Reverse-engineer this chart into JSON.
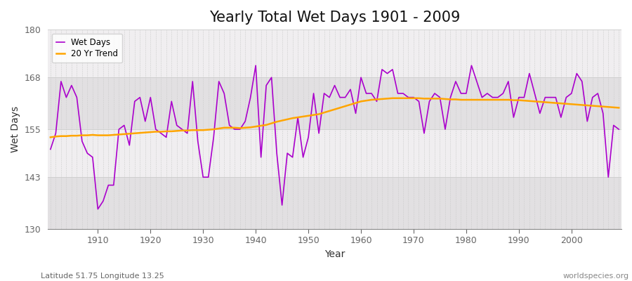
{
  "title": "Yearly Total Wet Days 1901 - 2009",
  "xlabel": "Year",
  "ylabel": "Wet Days",
  "footnote_left": "Latitude 51.75 Longitude 13.25",
  "footnote_right": "worldspecies.org",
  "ylim": [
    130,
    180
  ],
  "yticks": [
    130,
    143,
    155,
    168,
    180
  ],
  "xticks": [
    1910,
    1920,
    1930,
    1940,
    1950,
    1960,
    1970,
    1980,
    1990,
    2000
  ],
  "years": [
    1901,
    1902,
    1903,
    1904,
    1905,
    1906,
    1907,
    1908,
    1909,
    1910,
    1911,
    1912,
    1913,
    1914,
    1915,
    1916,
    1917,
    1918,
    1919,
    1920,
    1921,
    1922,
    1923,
    1924,
    1925,
    1926,
    1927,
    1928,
    1929,
    1930,
    1931,
    1932,
    1933,
    1934,
    1935,
    1936,
    1937,
    1938,
    1939,
    1940,
    1941,
    1942,
    1943,
    1944,
    1945,
    1946,
    1947,
    1948,
    1949,
    1950,
    1951,
    1952,
    1953,
    1954,
    1955,
    1956,
    1957,
    1958,
    1959,
    1960,
    1961,
    1962,
    1963,
    1964,
    1965,
    1966,
    1967,
    1968,
    1969,
    1970,
    1971,
    1972,
    1973,
    1974,
    1975,
    1976,
    1977,
    1978,
    1979,
    1980,
    1981,
    1982,
    1983,
    1984,
    1985,
    1986,
    1987,
    1988,
    1989,
    1990,
    1991,
    1992,
    1993,
    1994,
    1995,
    1996,
    1997,
    1998,
    1999,
    2000,
    2001,
    2002,
    2003,
    2004,
    2005,
    2006,
    2007,
    2008,
    2009
  ],
  "wet_days": [
    150,
    154,
    167,
    163,
    166,
    163,
    152,
    149,
    148,
    135,
    137,
    141,
    141,
    155,
    156,
    151,
    162,
    163,
    157,
    163,
    155,
    154,
    153,
    162,
    156,
    155,
    154,
    167,
    152,
    143,
    143,
    153,
    167,
    164,
    156,
    155,
    155,
    157,
    163,
    171,
    148,
    166,
    168,
    149,
    136,
    149,
    148,
    158,
    148,
    153,
    164,
    154,
    164,
    163,
    166,
    163,
    163,
    165,
    159,
    168,
    164,
    164,
    162,
    170,
    169,
    170,
    164,
    164,
    163,
    163,
    162,
    154,
    162,
    164,
    163,
    155,
    163,
    167,
    164,
    164,
    171,
    167,
    163,
    164,
    163,
    163,
    164,
    167,
    158,
    163,
    163,
    169,
    164,
    159,
    163,
    163,
    163,
    158,
    163,
    164,
    169,
    167,
    157,
    163,
    164,
    159,
    143,
    156,
    155
  ],
  "trend_values": [
    153.0,
    153.2,
    153.3,
    153.3,
    153.4,
    153.4,
    153.5,
    153.5,
    153.6,
    153.5,
    153.5,
    153.5,
    153.6,
    153.7,
    153.8,
    153.9,
    154.0,
    154.1,
    154.2,
    154.3,
    154.4,
    154.4,
    154.5,
    154.5,
    154.6,
    154.7,
    154.7,
    154.8,
    154.8,
    154.8,
    154.9,
    155.0,
    155.2,
    155.4,
    155.4,
    155.4,
    155.3,
    155.4,
    155.5,
    155.7,
    155.9,
    156.1,
    156.5,
    156.9,
    157.2,
    157.5,
    157.8,
    158.0,
    158.2,
    158.4,
    158.6,
    158.8,
    159.2,
    159.6,
    160.0,
    160.4,
    160.8,
    161.2,
    161.6,
    162.0,
    162.2,
    162.4,
    162.5,
    162.6,
    162.7,
    162.8,
    162.8,
    162.8,
    162.8,
    162.8,
    162.8,
    162.7,
    162.7,
    162.7,
    162.7,
    162.6,
    162.5,
    162.5,
    162.4,
    162.4,
    162.4,
    162.4,
    162.4,
    162.4,
    162.4,
    162.4,
    162.4,
    162.4,
    162.3,
    162.3,
    162.2,
    162.1,
    162.0,
    161.9,
    161.8,
    161.7,
    161.6,
    161.5,
    161.4,
    161.3,
    161.2,
    161.1,
    161.0,
    160.9,
    160.8,
    160.7,
    160.6,
    160.5,
    160.4
  ],
  "wet_days_color": "#AA00CC",
  "trend_color": "#FFA500",
  "bg_white": "#FFFFFF",
  "bg_light": "#F0EEF0",
  "bg_dark": "#E2E0E2",
  "grid_color": "#CCCCCC",
  "spine_color": "#888888",
  "tick_color": "#666666",
  "title_fontsize": 15,
  "axis_fontsize": 10,
  "tick_fontsize": 9,
  "footnote_fontsize": 8
}
